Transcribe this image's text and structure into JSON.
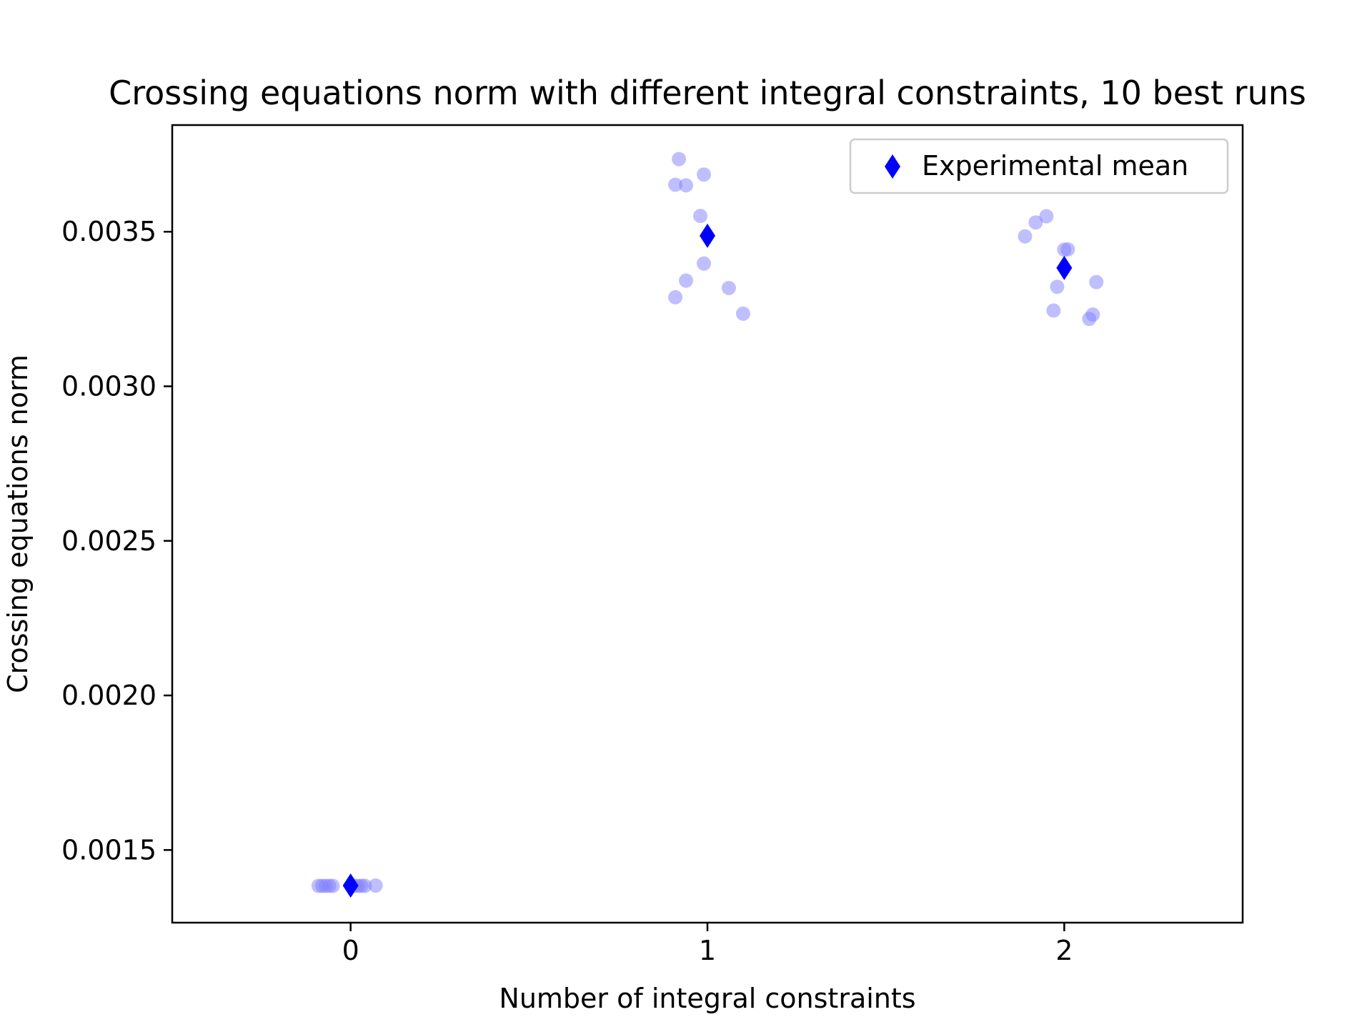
{
  "chart_data": {
    "type": "scatter",
    "title": "Crossing equations norm with different integral constraints, 10 best runs",
    "xlabel": "Number of integral constraints",
    "ylabel": "Crossing equations norm",
    "xlim": [
      -0.5,
      2.5
    ],
    "ylim": [
      0.001265,
      0.003845
    ],
    "x_ticks": [
      0,
      1,
      2
    ],
    "x_tick_labels": [
      "0",
      "1",
      "2"
    ],
    "y_ticks": [
      0.0015,
      0.002,
      0.0025,
      0.003,
      0.0035
    ],
    "y_tick_labels": [
      "0.0015",
      "0.0020",
      "0.0025",
      "0.0030",
      "0.0035"
    ],
    "grid": false,
    "legend": {
      "position": "top-right",
      "entries": [
        "Experimental mean"
      ]
    },
    "colors": {
      "runs": "#8080ff",
      "mean": "#0000ff"
    },
    "series": [
      {
        "kind": "runs",
        "x": [
          -0.09,
          -0.08,
          -0.06,
          -0.05,
          0.02,
          0.03,
          0.04,
          0.07,
          -0.07,
          0.01,
          0.92,
          0.91,
          0.94,
          0.99,
          0.98,
          0.99,
          0.94,
          1.06,
          0.91,
          1.1,
          1.89,
          1.92,
          1.95,
          2.0,
          2.01,
          1.98,
          2.09,
          1.97,
          2.08,
          2.07
        ],
        "y": [
          0.001384,
          0.001384,
          0.001384,
          0.001384,
          0.001384,
          0.001384,
          0.001384,
          0.001385,
          0.001384,
          0.001384,
          0.003735,
          0.003652,
          0.00365,
          0.003685,
          0.003551,
          0.003397,
          0.003342,
          0.003318,
          0.003288,
          0.003235,
          0.003485,
          0.00353,
          0.00355,
          0.003442,
          0.003443,
          0.003322,
          0.003337,
          0.003245,
          0.003232,
          0.003218
        ]
      },
      {
        "name": "Experimental mean",
        "kind": "mean",
        "x": [
          0,
          1,
          2
        ],
        "y": [
          0.001385,
          0.003487,
          0.003383
        ]
      }
    ]
  }
}
